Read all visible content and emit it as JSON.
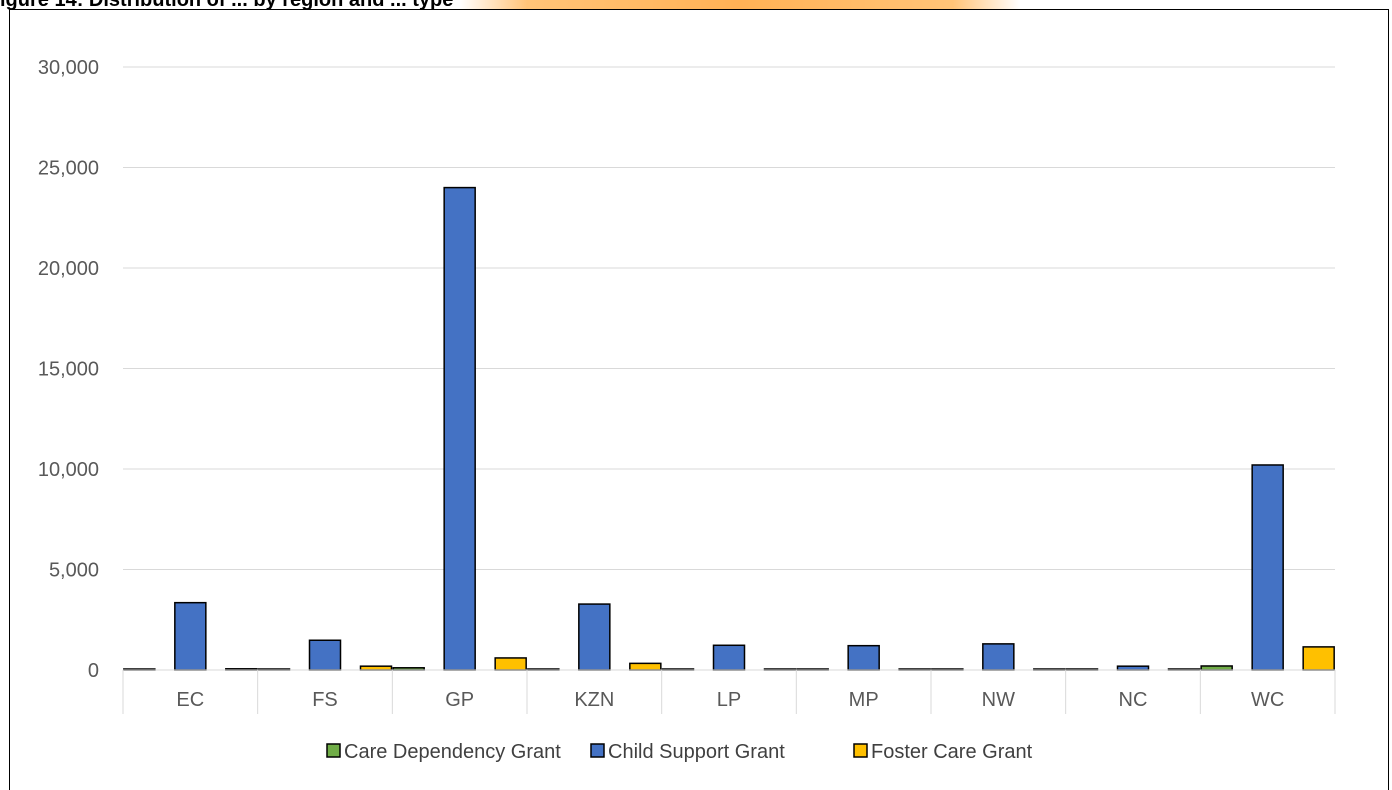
{
  "caption": {
    "text": "igure 14: Distribution of ... by region and ... type"
  },
  "chart_data": {
    "type": "bar",
    "title": "",
    "xlabel": "",
    "ylabel": "",
    "ylim": [
      0,
      30000
    ],
    "yticks": [
      0,
      5000,
      10000,
      15000,
      20000,
      25000,
      30000
    ],
    "ytick_labels": [
      "0",
      "5,000",
      "10,000",
      "15,000",
      "20,000",
      "25,000",
      "30,000"
    ],
    "grid": true,
    "legend_position": "bottom",
    "categories": [
      "EC",
      "FS",
      "GP",
      "KZN",
      "LP",
      "MP",
      "NW",
      "NC",
      "WC"
    ],
    "series": [
      {
        "name": "Care Dependency Grant",
        "color": "#70ad47",
        "values": [
          30,
          20,
          110,
          20,
          10,
          10,
          10,
          5,
          200
        ]
      },
      {
        "name": "Child Support Grant",
        "color": "#4472c4",
        "values": [
          3350,
          1480,
          24000,
          3280,
          1230,
          1210,
          1300,
          190,
          10200
        ]
      },
      {
        "name": "Foster Care Grant",
        "color": "#ffc000",
        "values": [
          60,
          190,
          600,
          330,
          30,
          25,
          20,
          10,
          1150
        ]
      }
    ]
  }
}
